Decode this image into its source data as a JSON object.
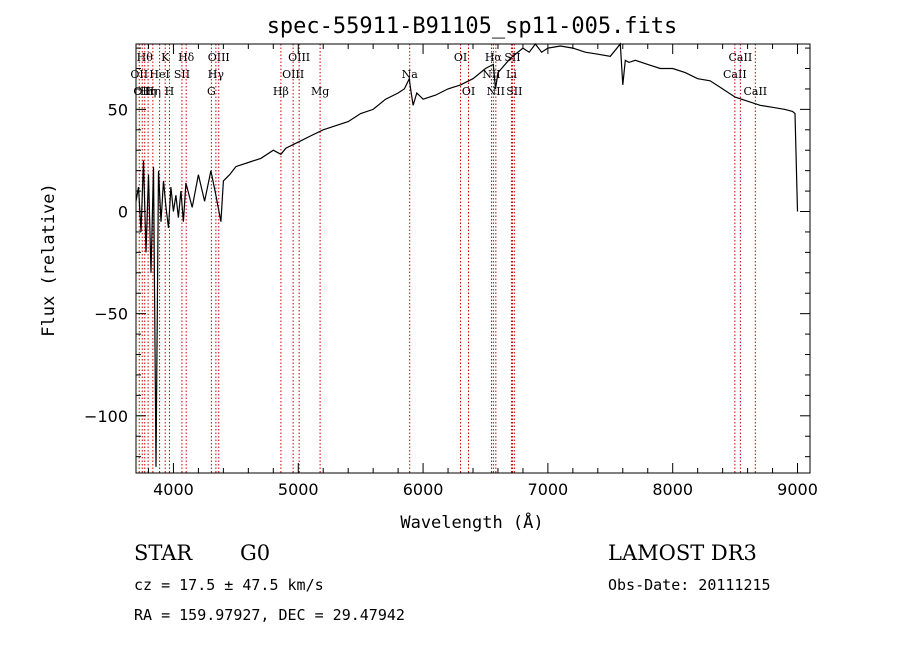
{
  "chart_data": {
    "type": "line",
    "title": "spec-55911-B91105_sp11-005.fits",
    "xlabel": "Wavelength (Å)",
    "ylabel": "Flux (relative)",
    "xlim": [
      3700,
      9100
    ],
    "ylim": [
      -128,
      82
    ],
    "x_ticks": [
      4000,
      5000,
      6000,
      7000,
      8000,
      9000
    ],
    "y_ticks": [
      50,
      0,
      -50,
      -100
    ],
    "y_tick_labels": [
      "50",
      "0",
      "−50",
      "−100"
    ],
    "grid": false,
    "line_color": "#000000",
    "marker_color": "#cc0000",
    "series": [
      {
        "name": "spectrum",
        "x": [
          3700,
          3720,
          3740,
          3760,
          3780,
          3800,
          3820,
          3840,
          3860,
          3880,
          3900,
          3920,
          3940,
          3960,
          3980,
          4000,
          4020,
          4040,
          4060,
          4080,
          4100,
          4150,
          4200,
          4250,
          4300,
          4340,
          4380,
          4400,
          4450,
          4500,
          4600,
          4700,
          4800,
          4861,
          4900,
          5000,
          5100,
          5200,
          5300,
          5400,
          5500,
          5600,
          5700,
          5800,
          5850,
          5890,
          5900,
          5920,
          5950,
          6000,
          6100,
          6200,
          6300,
          6400,
          6500,
          6563,
          6580,
          6600,
          6700,
          6800,
          6850,
          6900,
          6950,
          7000,
          7100,
          7200,
          7300,
          7400,
          7500,
          7580,
          7600,
          7620,
          7650,
          7700,
          7800,
          7900,
          8000,
          8100,
          8200,
          8300,
          8400,
          8500,
          8600,
          8700,
          8800,
          8900,
          8960,
          8980,
          9000
        ],
        "y": [
          5,
          12,
          -10,
          25,
          -20,
          18,
          -30,
          22,
          -125,
          20,
          -5,
          15,
          2,
          -8,
          12,
          0,
          8,
          -3,
          10,
          -5,
          14,
          2,
          18,
          5,
          20,
          8,
          -5,
          15,
          18,
          22,
          24,
          26,
          30,
          28,
          31,
          34,
          37,
          40,
          42,
          44,
          48,
          50,
          55,
          58,
          60,
          65,
          60,
          52,
          58,
          55,
          57,
          60,
          62,
          65,
          70,
          72,
          60,
          68,
          75,
          80,
          78,
          84,
          78,
          80,
          81,
          80,
          78,
          77,
          76,
          82,
          62,
          74,
          73,
          74,
          72,
          70,
          70,
          68,
          65,
          64,
          60,
          56,
          54,
          52,
          51,
          50,
          49,
          48,
          0
        ]
      }
    ],
    "line_markers": [
      {
        "wavelength": 3726,
        "label": "OII",
        "row": 2
      },
      {
        "wavelength": 3750,
        "label": "OII",
        "row": 3
      },
      {
        "wavelength": 3770,
        "label": "Hθ",
        "row": 1
      },
      {
        "wavelength": 3797,
        "label": "Hη",
        "row": 3
      },
      {
        "wavelength": 3835,
        "label": "Hη",
        "row": 3
      },
      {
        "wavelength": 3889,
        "label": "HeI",
        "row": 2
      },
      {
        "wavelength": 3934,
        "label": "K",
        "row": 1
      },
      {
        "wavelength": 3968,
        "label": "H",
        "row": 3
      },
      {
        "wavelength": 4068,
        "label": "SII",
        "row": 2
      },
      {
        "wavelength": 4102,
        "label": "Hδ",
        "row": 1
      },
      {
        "wavelength": 4304,
        "label": "G",
        "row": 3
      },
      {
        "wavelength": 4340,
        "label": "Hγ",
        "row": 2
      },
      {
        "wavelength": 4363,
        "label": "OIII",
        "row": 1
      },
      {
        "wavelength": 4861,
        "label": "Hβ",
        "row": 3
      },
      {
        "wavelength": 4959,
        "label": "OIII",
        "row": 2
      },
      {
        "wavelength": 5007,
        "label": "OIII",
        "row": 1
      },
      {
        "wavelength": 5175,
        "label": "Mg",
        "row": 3
      },
      {
        "wavelength": 5893,
        "label": "Na",
        "row": 2
      },
      {
        "wavelength": 6300,
        "label": "OI",
        "row": 1
      },
      {
        "wavelength": 6364,
        "label": "OI",
        "row": 3
      },
      {
        "wavelength": 6548,
        "label": "NII",
        "row": 2
      },
      {
        "wavelength": 6563,
        "label": "Hα",
        "row": 1
      },
      {
        "wavelength": 6583,
        "label": "NII",
        "row": 3
      },
      {
        "wavelength": 6708,
        "label": "Li",
        "row": 2
      },
      {
        "wavelength": 6716,
        "label": "SII",
        "row": 1
      },
      {
        "wavelength": 6731,
        "label": "SII",
        "row": 3
      },
      {
        "wavelength": 8498,
        "label": "CaII",
        "row": 2
      },
      {
        "wavelength": 8542,
        "label": "CaII",
        "row": 1
      },
      {
        "wavelength": 8662,
        "label": "CaII",
        "row": 3
      }
    ]
  },
  "info": {
    "object_class": "STAR",
    "subclass": "G0",
    "survey": "LAMOST DR3",
    "redshift": "cz = 17.5 ± 47.5 km/s",
    "obs_date": "Obs-Date: 20111215",
    "coords": "RA = 159.97927, DEC =  29.47942"
  }
}
